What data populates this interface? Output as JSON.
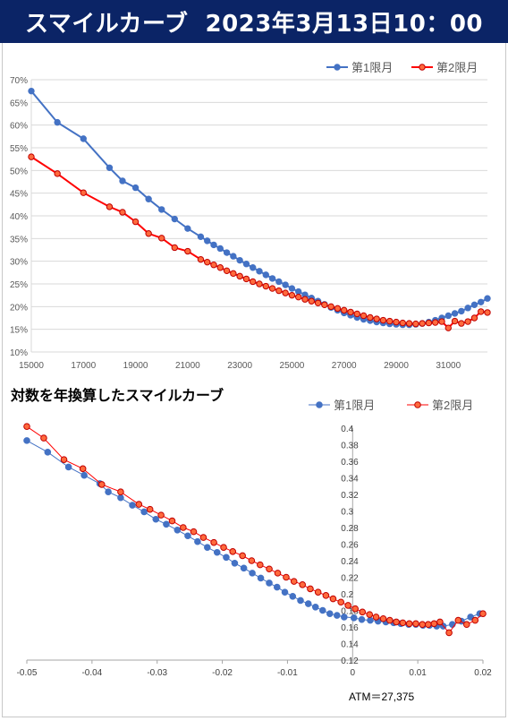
{
  "header": {
    "title": "スマイルカーブ",
    "datetime": "2023年3月13日10：00",
    "bg_color": "#0b2466"
  },
  "chart_data": [
    {
      "type": "line",
      "title": "",
      "legend_position": "top-right",
      "grid": true,
      "xlim": [
        15000,
        32500
      ],
      "ylim": [
        10,
        70
      ],
      "x_ticks": [
        "15000",
        "17000",
        "19000",
        "21000",
        "23000",
        "25000",
        "27000",
        "29000",
        "31000"
      ],
      "y_ticks": [
        "10%",
        "15%",
        "20%",
        "25%",
        "30%",
        "35%",
        "40%",
        "45%",
        "50%",
        "55%",
        "60%",
        "65%",
        "70%"
      ],
      "series": [
        {
          "name": "第1限月",
          "color": "#4472c4",
          "x": [
            15000,
            16000,
            17000,
            18000,
            18500,
            19000,
            19500,
            20000,
            20500,
            21000,
            21500,
            21750,
            22000,
            22250,
            22500,
            22750,
            23000,
            23250,
            23500,
            23750,
            24000,
            24250,
            24500,
            24750,
            25000,
            25250,
            25500,
            25750,
            26000,
            26250,
            26500,
            26750,
            27000,
            27250,
            27500,
            27750,
            28000,
            28250,
            28500,
            28750,
            29000,
            29250,
            29500,
            29750,
            30000,
            30250,
            30500,
            30750,
            31000,
            31250,
            31500,
            31750,
            32000,
            32250,
            32500
          ],
          "y": [
            67.5,
            60.6,
            57.0,
            50.6,
            47.7,
            46.2,
            43.7,
            41.4,
            39.3,
            37.2,
            35.4,
            34.5,
            33.6,
            32.8,
            31.9,
            31.1,
            30.2,
            29.4,
            28.6,
            27.8,
            27.0,
            26.2,
            25.5,
            24.8,
            24.0,
            23.3,
            22.6,
            21.9,
            21.2,
            20.5,
            19.8,
            19.2,
            18.6,
            18.1,
            17.6,
            17.2,
            16.9,
            16.6,
            16.4,
            16.2,
            16.1,
            16.0,
            16.0,
            16.1,
            16.3,
            16.6,
            17.0,
            17.5,
            18.0,
            18.5,
            19.0,
            19.7,
            20.4,
            21.0,
            21.8
          ]
        },
        {
          "name": "第2限月",
          "color": "#ff0000",
          "x": [
            15000,
            16000,
            17000,
            18000,
            18500,
            19000,
            19500,
            20000,
            20500,
            21000,
            21500,
            21750,
            22000,
            22250,
            22500,
            22750,
            23000,
            23250,
            23500,
            23750,
            24000,
            24250,
            24500,
            24750,
            25000,
            25250,
            25500,
            25750,
            26000,
            26250,
            26500,
            26750,
            27000,
            27250,
            27500,
            27750,
            28000,
            28250,
            28500,
            28750,
            29000,
            29250,
            29500,
            29750,
            30000,
            30250,
            30500,
            30750,
            31000,
            31250,
            31500,
            31750,
            32000,
            32250,
            32500
          ],
          "y": [
            53.0,
            49.3,
            45.1,
            42.0,
            40.8,
            38.7,
            36.1,
            35.1,
            33.0,
            32.2,
            30.4,
            29.8,
            29.2,
            28.6,
            27.9,
            27.3,
            26.7,
            26.1,
            25.5,
            25.0,
            24.5,
            24.0,
            23.5,
            23.0,
            22.5,
            22.1,
            21.6,
            21.2,
            20.8,
            20.4,
            20.0,
            19.6,
            19.2,
            18.8,
            18.4,
            18.0,
            17.6,
            17.3,
            17.0,
            16.8,
            16.6,
            16.4,
            16.3,
            16.2,
            16.3,
            16.4,
            16.5,
            16.7,
            15.3,
            16.8,
            16.3,
            16.7,
            17.5,
            18.9,
            18.7
          ]
        }
      ]
    },
    {
      "type": "line",
      "title": "対数を年換算したスマイルカーブ",
      "legend_position": "top-right",
      "grid": false,
      "xlim": [
        -0.05,
        0.02
      ],
      "ylim": [
        0.12,
        0.4
      ],
      "x_ticks": [
        "-0.05",
        "-0.04",
        "-0.03",
        "-0.02",
        "-0.01",
        "0",
        "0.01",
        "0.02"
      ],
      "y_ticks": [
        "0.12",
        "0.14",
        "0.16",
        "0.18",
        "0.2",
        "0.22",
        "0.24",
        "0.26",
        "0.28",
        "0.3",
        "0.32",
        "0.34",
        "0.36",
        "0.38",
        "0.4"
      ],
      "annotation": "ATM＝27,375",
      "series": [
        {
          "name": "第1限月",
          "color": "#4472c4",
          "x": [
            -0.05,
            -0.0468,
            -0.0436,
            -0.0412,
            -0.0388,
            -0.0375,
            -0.0356,
            -0.0338,
            -0.032,
            -0.0302,
            -0.0286,
            -0.0269,
            -0.0253,
            -0.0238,
            -0.0223,
            -0.0208,
            -0.0194,
            -0.0181,
            -0.0167,
            -0.0154,
            -0.0141,
            -0.0128,
            -0.0116,
            -0.0104,
            -0.0092,
            -0.008,
            -0.0068,
            -0.0057,
            -0.0046,
            -0.0035,
            -0.0024,
            -0.0013,
            0.0002,
            0.0014,
            0.0027,
            0.0039,
            0.0051,
            0.0063,
            0.0074,
            0.0086,
            0.0097,
            0.0108,
            0.0118,
            0.0129,
            0.0139,
            0.0153,
            0.0167,
            0.0181,
            0.0195
          ],
          "y": [
            0.385,
            0.371,
            0.353,
            0.343,
            0.333,
            0.323,
            0.316,
            0.307,
            0.299,
            0.29,
            0.284,
            0.277,
            0.27,
            0.263,
            0.256,
            0.25,
            0.244,
            0.237,
            0.231,
            0.225,
            0.219,
            0.213,
            0.208,
            0.202,
            0.197,
            0.192,
            0.188,
            0.184,
            0.18,
            0.176,
            0.174,
            0.172,
            0.171,
            0.169,
            0.168,
            0.167,
            0.166,
            0.165,
            0.164,
            0.163,
            0.163,
            0.162,
            0.162,
            0.161,
            0.161,
            0.163,
            0.167,
            0.172,
            0.176
          ]
        },
        {
          "name": "第2限月",
          "color": "#ff0000",
          "x": [
            -0.05,
            -0.0474,
            -0.0443,
            -0.0414,
            -0.0385,
            -0.0356,
            -0.0328,
            -0.0311,
            -0.0294,
            -0.0277,
            -0.026,
            -0.0244,
            -0.0229,
            -0.0213,
            -0.0198,
            -0.0184,
            -0.0169,
            -0.0155,
            -0.0142,
            -0.0128,
            -0.0115,
            -0.0102,
            -0.009,
            -0.0077,
            -0.0065,
            -0.0053,
            -0.0041,
            -0.003,
            -0.0018,
            -0.0007,
            0.0004,
            0.0015,
            0.0026,
            0.0036,
            0.0047,
            0.0057,
            0.0067,
            0.0077,
            0.0087,
            0.0097,
            0.0107,
            0.0116,
            0.0125,
            0.0134,
            0.0148,
            0.0162,
            0.0175,
            0.0188,
            0.02
          ],
          "y": [
            0.402,
            0.388,
            0.362,
            0.351,
            0.332,
            0.323,
            0.308,
            0.302,
            0.295,
            0.288,
            0.28,
            0.275,
            0.268,
            0.262,
            0.256,
            0.251,
            0.246,
            0.24,
            0.235,
            0.23,
            0.225,
            0.22,
            0.215,
            0.211,
            0.206,
            0.202,
            0.198,
            0.194,
            0.19,
            0.186,
            0.182,
            0.178,
            0.175,
            0.172,
            0.17,
            0.168,
            0.166,
            0.165,
            0.164,
            0.164,
            0.163,
            0.163,
            0.164,
            0.166,
            0.153,
            0.168,
            0.163,
            0.168,
            0.176
          ]
        }
      ]
    }
  ]
}
